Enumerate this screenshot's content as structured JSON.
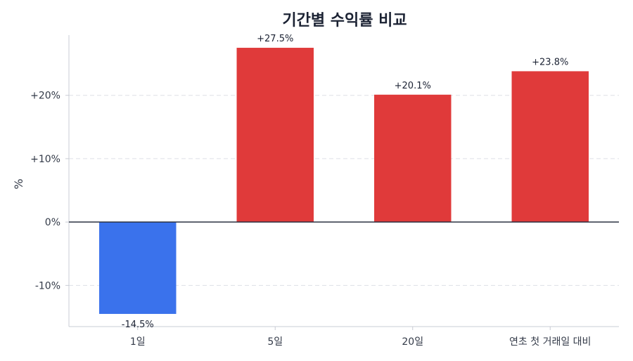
{
  "chart_data": {
    "type": "bar",
    "title": "기간별 수익률 비교",
    "xlabel": "",
    "ylabel": "%",
    "categories": [
      "1일",
      "5일",
      "20일",
      "연초 첫 거래일 대비"
    ],
    "values": [
      -14.5,
      27.5,
      20.1,
      23.8
    ],
    "data_labels": [
      "-14.5%",
      "+27.5%",
      "+20.1%",
      "+23.8%"
    ],
    "ylim": [
      -16.5,
      29.5
    ],
    "yticks": [
      -10,
      0,
      10,
      20
    ],
    "ytick_labels": [
      "-10%",
      "0%",
      "+10%",
      "+20%"
    ],
    "grid": "y-dashed",
    "colors": {
      "positive": "#e03a3a",
      "negative": "#3a72ec",
      "zero_line": "#2b3242",
      "grid": "#dde0e6",
      "axis": "#c8ccd4"
    }
  }
}
